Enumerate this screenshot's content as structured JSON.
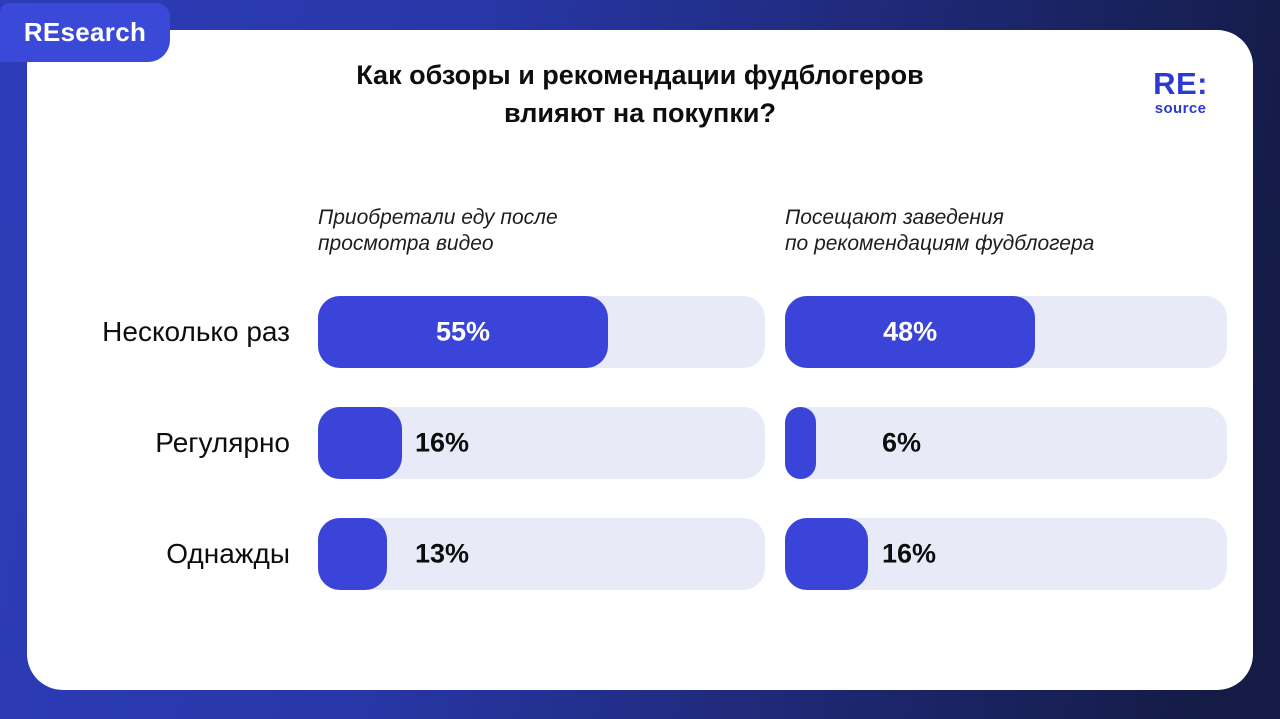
{
  "page": {
    "badge_label": "REsearch",
    "logo": {
      "top": "RE:",
      "bottom": "source"
    },
    "title": "Как обзоры и рекомендации фудблогеров\nвлияют на покупки?"
  },
  "colors": {
    "accent_bar": "#3a44d8",
    "bar_track": "#e9eaf8",
    "badge_background": "#3b49d8",
    "logo_blue": "#2b3ad0",
    "background_gradient_left": "#2d3db9",
    "background_gradient_right": "#141b45",
    "card_background": "#ffffff",
    "text_dark": "#0d0d0d"
  },
  "chart_data": {
    "type": "bar",
    "orientation": "horizontal",
    "title": "Как обзоры и рекомендации фудблогеров влияют на покупки?",
    "categories": [
      "Несколько раз",
      "Регулярно",
      "Однажды"
    ],
    "series": [
      {
        "name": "Приобретали еду после\nпросмотра видео",
        "values": [
          55,
          16,
          13
        ]
      },
      {
        "name": "Посещают заведения\nпо рекомендациям фудблогера",
        "values": [
          48,
          6,
          16
        ]
      }
    ],
    "unit": "%",
    "value_labels_shown": true,
    "inside_label_threshold": 40,
    "track_full_scale_percent": 85,
    "grid": false,
    "legend_position": "column-headers"
  }
}
